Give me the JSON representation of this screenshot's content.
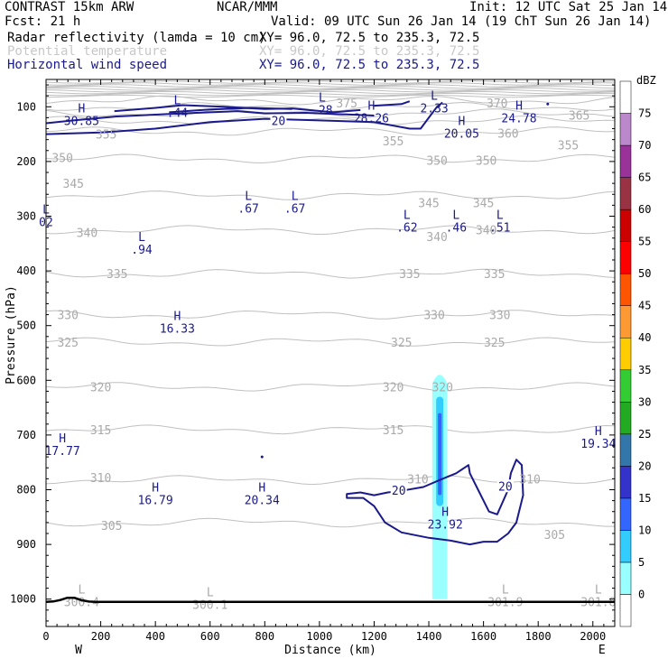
{
  "header": {
    "left1": "CONTRAST 15km ARW",
    "center1": "NCAR/MMM",
    "right1": "Init: 12 UTC Sat 25 Jan 14",
    "left2": "Fcst:   21 h",
    "right2": "Valid: 09 UTC Sun 26 Jan 14 (19 ChT Sun 26 Jan 14)",
    "fields": [
      {
        "name": "Radar reflectivity (lamda = 10 cm)",
        "xy": "XY=  96.0, 72.5 to 235.3, 72.5",
        "color": "#000000"
      },
      {
        "name": "Potential temperature",
        "xy": "XY=  96.0, 72.5 to 235.3, 72.5",
        "color": "#c8c8c8"
      },
      {
        "name": "Horizontal wind speed",
        "xy": "XY=  96.0, 72.5 to 235.3, 72.5",
        "color": "#1a1a8c"
      }
    ]
  },
  "chart_data": {
    "type": "cross-section",
    "xlabel": "Distance (km)",
    "ylabel": "Pressure (hPa)",
    "xlim": [
      0,
      2080
    ],
    "ylim": [
      1050,
      50
    ],
    "xticks": [
      0,
      200,
      400,
      600,
      800,
      1000,
      1200,
      1400,
      1600,
      1800,
      2000
    ],
    "yticks": [
      100,
      200,
      300,
      400,
      500,
      600,
      700,
      800,
      900,
      1000
    ],
    "west_label": "W",
    "east_label": "E",
    "theta_levels": [
      {
        "label": "305",
        "p": 860
      },
      {
        "label": "310",
        "p": 782
      },
      {
        "label": "315",
        "p": 690
      },
      {
        "label": "320",
        "p": 612
      },
      {
        "label": "325",
        "p": 530
      },
      {
        "label": "330",
        "p": 480
      },
      {
        "label": "335",
        "p": 405
      },
      {
        "label": "340",
        "p": 325
      },
      {
        "label": "345",
        "p": 262
      },
      {
        "label": "350",
        "p": 195
      },
      {
        "label": "355",
        "p": 145
      },
      {
        "label": "360",
        "p": 125
      },
      {
        "label": "365",
        "p": 112
      },
      {
        "label": "370",
        "p": 100
      },
      {
        "label": "375",
        "p": 88
      }
    ],
    "theta_labels": [
      {
        "text": "305",
        "x": 240,
        "p": 865
      },
      {
        "text": "305",
        "x": 1860,
        "p": 882
      },
      {
        "text": "310",
        "x": 200,
        "p": 778
      },
      {
        "text": "310",
        "x": 1360,
        "p": 780
      },
      {
        "text": "310",
        "x": 1770,
        "p": 780
      },
      {
        "text": "315",
        "x": 200,
        "p": 690
      },
      {
        "text": "315",
        "x": 1270,
        "p": 690
      },
      {
        "text": "320",
        "x": 200,
        "p": 612
      },
      {
        "text": "320",
        "x": 1270,
        "p": 612
      },
      {
        "text": "320",
        "x": 1450,
        "p": 612
      },
      {
        "text": "325",
        "x": 80,
        "p": 530
      },
      {
        "text": "325",
        "x": 1300,
        "p": 530
      },
      {
        "text": "325",
        "x": 1640,
        "p": 530
      },
      {
        "text": "330",
        "x": 80,
        "p": 480
      },
      {
        "text": "330",
        "x": 1420,
        "p": 480
      },
      {
        "text": "330",
        "x": 1660,
        "p": 480
      },
      {
        "text": "335",
        "x": 260,
        "p": 405
      },
      {
        "text": "335",
        "x": 1330,
        "p": 405
      },
      {
        "text": "335",
        "x": 1640,
        "p": 405
      },
      {
        "text": "340",
        "x": 150,
        "p": 330
      },
      {
        "text": "340",
        "x": 1430,
        "p": 337
      },
      {
        "text": "340",
        "x": 1610,
        "p": 325
      },
      {
        "text": "345",
        "x": 100,
        "p": 240
      },
      {
        "text": "345",
        "x": 1400,
        "p": 275
      },
      {
        "text": "345",
        "x": 1600,
        "p": 275
      },
      {
        "text": "350",
        "x": 60,
        "p": 193
      },
      {
        "text": "350",
        "x": 1430,
        "p": 198
      },
      {
        "text": "350",
        "x": 1610,
        "p": 198
      },
      {
        "text": "355",
        "x": 220,
        "p": 150
      },
      {
        "text": "355",
        "x": 1270,
        "p": 162
      },
      {
        "text": "355",
        "x": 1910,
        "p": 170
      },
      {
        "text": "360",
        "x": 1690,
        "p": 148
      },
      {
        "text": "365",
        "x": 1950,
        "p": 115
      },
      {
        "text": "370",
        "x": 1650,
        "p": 93
      },
      {
        "text": "375",
        "x": 1100,
        "p": 93
      }
    ],
    "extrema_theta": [
      {
        "mark": "L",
        "value": "300.4",
        "x": 130,
        "p": 995
      },
      {
        "mark": "L",
        "value": "300.1",
        "x": 600,
        "p": 1000
      },
      {
        "mark": "L",
        "value": "301.9",
        "x": 1680,
        "p": 995
      },
      {
        "mark": "L",
        "value": "301.8",
        "x": 2020,
        "p": 995
      }
    ],
    "wind_contour_label": "20",
    "wind_labels": [
      {
        "text": "20",
        "x": 850,
        "p": 125
      },
      {
        "text": "20",
        "x": 1290,
        "p": 801
      },
      {
        "text": "20",
        "x": 1680,
        "p": 793
      }
    ],
    "extrema_wind": [
      {
        "mark": "H",
        "value": "30.85",
        "x": 130,
        "p": 115
      },
      {
        "mark": "L",
        "value": ".44",
        "x": 480,
        "p": 100
      },
      {
        "mark": "L",
        "value": ".28",
        "x": 1010,
        "p": 95
      },
      {
        "mark": "H",
        "value": "28.26",
        "x": 1190,
        "p": 110
      },
      {
        "mark": "L",
        "value": "2.33",
        "x": 1420,
        "p": 92
      },
      {
        "mark": "H",
        "value": "24.78",
        "x": 1730,
        "p": 110
      },
      {
        "mark": "H",
        "value": "20.05",
        "x": 1520,
        "p": 138
      },
      {
        "mark": "L",
        "value": ".67",
        "x": 740,
        "p": 275
      },
      {
        "mark": "L",
        "value": ".67",
        "x": 910,
        "p": 275
      },
      {
        "mark": "L",
        "value": ".62",
        "x": 1320,
        "p": 310
      },
      {
        "mark": "L",
        "value": ".46",
        "x": 1500,
        "p": 310
      },
      {
        "mark": "L",
        "value": ".51",
        "x": 1660,
        "p": 310
      },
      {
        "mark": "L",
        "value": ".94",
        "x": 350,
        "p": 350
      },
      {
        "mark": "L",
        "value": "02",
        "x": 0,
        "p": 300
      },
      {
        "mark": "H",
        "value": "16.33",
        "x": 480,
        "p": 495
      },
      {
        "mark": "H",
        "value": "17.77",
        "x": 60,
        "p": 718
      },
      {
        "mark": "H",
        "value": "16.79",
        "x": 400,
        "p": 808
      },
      {
        "mark": "H",
        "value": "20.34",
        "x": 790,
        "p": 808
      },
      {
        "mark": "H",
        "value": "23.92",
        "x": 1460,
        "p": 853
      },
      {
        "mark": "H",
        "value": "19.34",
        "x": 2020,
        "p": 705
      }
    ],
    "reflectivity_column": {
      "x_center": 1440,
      "width_km": 55,
      "p_top": 590,
      "p_bottom": 1000,
      "core_dbz": 15,
      "edge_dbz": 5
    },
    "colorbar": {
      "unit": "dBZ",
      "levels": [
        "0",
        "5",
        "10",
        "15",
        "20",
        "25",
        "30",
        "35",
        "40",
        "45",
        "50",
        "55",
        "60",
        "65",
        "70",
        "75"
      ],
      "colors": [
        "#ffffff",
        "#99ffff",
        "#33ccff",
        "#3366ff",
        "#3333cc",
        "#3377aa",
        "#22aa22",
        "#33cc33",
        "#ffcc00",
        "#ff9933",
        "#ff5500",
        "#ff0000",
        "#cc0000",
        "#993344",
        "#993399",
        "#bb88cc",
        "#ffffff"
      ]
    }
  }
}
